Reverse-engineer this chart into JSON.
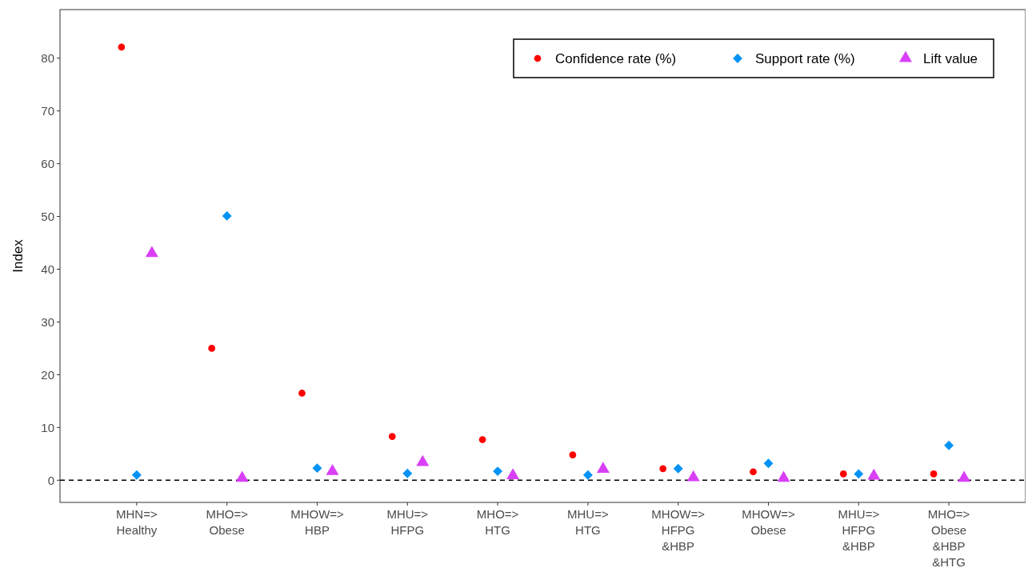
{
  "chart_data": {
    "type": "scatter",
    "ylabel": "Index",
    "categories": [
      "MHN=>\nHealthy",
      "MHO=>\nObese",
      "MHOW=>\nHBP",
      "MHU=>\nHFPG",
      "MHO=>\nHTG",
      "MHU=>\nHTG",
      "MHOW=>\nHFPG\n&HBP",
      "MHOW=>\nObese",
      "MHU=>\nHFPG\n&HBP",
      "MHO=>\nObese\n&HBP\n&HTG"
    ],
    "series": [
      {
        "name": "Confidence rate (%)",
        "color": "#ff0000",
        "marker": "circle",
        "values": [
          82.1,
          25.0,
          16.5,
          8.3,
          7.7,
          4.8,
          2.2,
          1.6,
          1.2,
          1.2
        ]
      },
      {
        "name": "Support rate (%)",
        "color": "#0093f5",
        "marker": "diamond",
        "values": [
          1.0,
          50.1,
          2.3,
          1.3,
          1.7,
          1.0,
          2.2,
          3.2,
          1.2,
          6.6
        ]
      },
      {
        "name": "Lift value",
        "color": "#d940f5",
        "marker": "triangle",
        "values": [
          43.0,
          0.4,
          1.7,
          3.4,
          0.9,
          2.1,
          0.5,
          0.4,
          0.8,
          0.4
        ]
      }
    ],
    "ylim": [
      -4.2,
      89.2
    ],
    "yticks": [
      0,
      10,
      20,
      30,
      40,
      50,
      60,
      70,
      80
    ],
    "ref_lines": [
      {
        "axis": "y",
        "value": 0,
        "color": "#000000",
        "line_style": "dashed"
      }
    ],
    "grid": false,
    "legend": "top right"
  }
}
